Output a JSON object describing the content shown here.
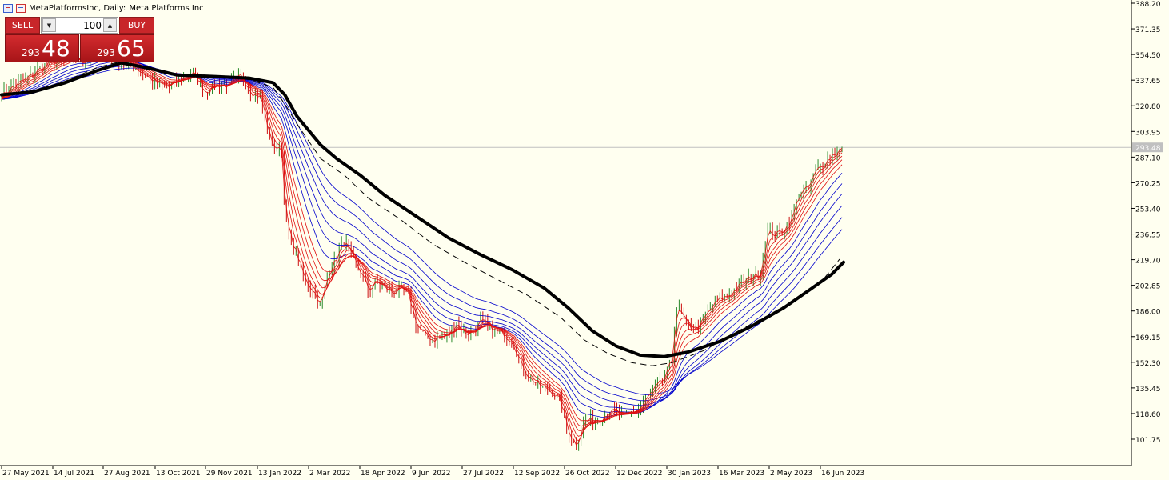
{
  "header": {
    "symbol_text": "MetaPlatformsInc, Daily:",
    "description": "Meta Platforms Inc"
  },
  "trade_panel": {
    "sell_label": "SELL",
    "buy_label": "BUY",
    "volume": "100",
    "sell_price_small": "293",
    "sell_price_large": "48",
    "buy_price_small": "293",
    "buy_price_large": "65"
  },
  "chart_data": {
    "type": "line",
    "title": "",
    "symbol": "MetaPlatformsInc",
    "timeframe": "Daily",
    "current_price": "293.48",
    "y_ticks": [
      "388.20",
      "371.35",
      "354.50",
      "337.65",
      "320.80",
      "303.95",
      "287.10",
      "270.25",
      "253.40",
      "236.55",
      "219.70",
      "202.85",
      "186.00",
      "169.15",
      "152.30",
      "135.45",
      "118.60",
      "101.75"
    ],
    "x_ticks": [
      "27 May 2021",
      "14 Jul 2021",
      "27 Aug 2021",
      "13 Oct 2021",
      "29 Nov 2021",
      "13 Jan 2022",
      "2 Mar 2022",
      "18 Apr 2022",
      "9 Jun 2022",
      "27 Jul 2022",
      "12 Sep 2022",
      "26 Oct 2022",
      "12 Dec 2022",
      "30 Jan 2023",
      "16 Mar 2023",
      "2 May 2023",
      "16 Jun 2023"
    ],
    "ylim": [
      92,
      390
    ],
    "colors": {
      "background": "#fffff0",
      "candles_up": "#2a8a2a",
      "candles_down": "#cc1111",
      "short_emas": "#e01010",
      "long_emas": "#0000cc",
      "ma_200": "#000000",
      "bid_line": "#c0c0c0"
    },
    "price_path": [
      [
        0,
        328
      ],
      [
        15,
        334
      ],
      [
        30,
        338
      ],
      [
        45,
        344
      ],
      [
        60,
        349
      ],
      [
        75,
        351
      ],
      [
        90,
        352
      ],
      [
        105,
        350
      ],
      [
        120,
        356
      ],
      [
        135,
        354
      ],
      [
        150,
        350
      ],
      [
        165,
        347
      ],
      [
        180,
        341
      ],
      [
        195,
        335
      ],
      [
        210,
        333
      ],
      [
        225,
        339
      ],
      [
        240,
        342
      ],
      [
        255,
        330
      ],
      [
        270,
        335
      ],
      [
        285,
        334
      ],
      [
        300,
        340
      ],
      [
        315,
        329
      ],
      [
        325,
        326
      ],
      [
        335,
        300
      ],
      [
        345,
        290
      ],
      [
        350,
        300
      ],
      [
        355,
        250
      ],
      [
        360,
        235
      ],
      [
        370,
        222
      ],
      [
        380,
        205
      ],
      [
        390,
        200
      ],
      [
        400,
        189
      ],
      [
        410,
        213
      ],
      [
        420,
        222
      ],
      [
        430,
        232
      ],
      [
        440,
        219
      ],
      [
        450,
        211
      ],
      [
        460,
        199
      ],
      [
        470,
        206
      ],
      [
        480,
        201
      ],
      [
        490,
        198
      ],
      [
        500,
        201
      ],
      [
        510,
        195
      ],
      [
        520,
        176
      ],
      [
        530,
        170
      ],
      [
        540,
        167
      ],
      [
        550,
        169
      ],
      [
        560,
        170
      ],
      [
        570,
        179
      ],
      [
        580,
        171
      ],
      [
        590,
        172
      ],
      [
        600,
        179
      ],
      [
        610,
        176
      ],
      [
        620,
        172
      ],
      [
        630,
        170
      ],
      [
        640,
        167
      ],
      [
        650,
        151
      ],
      [
        660,
        143
      ],
      [
        670,
        138
      ],
      [
        680,
        135
      ],
      [
        690,
        133
      ],
      [
        700,
        126
      ],
      [
        710,
        106
      ],
      [
        720,
        98
      ],
      [
        730,
        114
      ],
      [
        740,
        114
      ],
      [
        750,
        116
      ],
      [
        760,
        120
      ],
      [
        770,
        120
      ],
      [
        780,
        116
      ],
      [
        790,
        120
      ],
      [
        800,
        122
      ],
      [
        810,
        130
      ],
      [
        820,
        136
      ],
      [
        830,
        141
      ],
      [
        840,
        155
      ],
      [
        845,
        190
      ],
      [
        850,
        186
      ],
      [
        860,
        175
      ],
      [
        870,
        174
      ],
      [
        880,
        181
      ],
      [
        890,
        189
      ],
      [
        900,
        194
      ],
      [
        910,
        196
      ],
      [
        920,
        201
      ],
      [
        930,
        205
      ],
      [
        940,
        209
      ],
      [
        950,
        210
      ],
      [
        960,
        239
      ],
      [
        970,
        236
      ],
      [
        980,
        240
      ],
      [
        990,
        247
      ],
      [
        1000,
        265
      ],
      [
        1010,
        266
      ],
      [
        1020,
        278
      ],
      [
        1030,
        283
      ],
      [
        1040,
        289
      ],
      [
        1050,
        292
      ],
      [
        1055,
        293.48
      ]
    ],
    "ema_short_lags": [
      3,
      6,
      9,
      13,
      17,
      22
    ],
    "ema_long_lags": [
      30,
      40,
      50,
      62,
      75,
      90
    ],
    "ma_200_path": [
      [
        0,
        328
      ],
      [
        40,
        330
      ],
      [
        80,
        336
      ],
      [
        120,
        344
      ],
      [
        150,
        349
      ],
      [
        180,
        346
      ],
      [
        220,
        341
      ],
      [
        270,
        340
      ],
      [
        310,
        339
      ],
      [
        340,
        336
      ],
      [
        355,
        328
      ],
      [
        370,
        314
      ],
      [
        400,
        295
      ],
      [
        420,
        286
      ],
      [
        450,
        275
      ],
      [
        480,
        262
      ],
      [
        520,
        248
      ],
      [
        560,
        234
      ],
      [
        600,
        223
      ],
      [
        640,
        213
      ],
      [
        680,
        201
      ],
      [
        710,
        188
      ],
      [
        740,
        173
      ],
      [
        770,
        163
      ],
      [
        800,
        157
      ],
      [
        830,
        156
      ],
      [
        860,
        159
      ],
      [
        900,
        166
      ],
      [
        940,
        176
      ],
      [
        980,
        188
      ],
      [
        1010,
        199
      ],
      [
        1040,
        210
      ],
      [
        1055,
        218
      ]
    ],
    "ma_200_dashed_path": [
      [
        0,
        328
      ],
      [
        40,
        330
      ],
      [
        80,
        337
      ],
      [
        120,
        346
      ],
      [
        150,
        350
      ],
      [
        180,
        345
      ],
      [
        220,
        341
      ],
      [
        270,
        340
      ],
      [
        310,
        338
      ],
      [
        340,
        333
      ],
      [
        355,
        322
      ],
      [
        370,
        309
      ],
      [
        400,
        286
      ],
      [
        430,
        275
      ],
      [
        460,
        260
      ],
      [
        500,
        246
      ],
      [
        540,
        230
      ],
      [
        580,
        218
      ],
      [
        620,
        207
      ],
      [
        660,
        196
      ],
      [
        700,
        182
      ],
      [
        730,
        167
      ],
      [
        760,
        158
      ],
      [
        790,
        152
      ],
      [
        815,
        150
      ],
      [
        840,
        152
      ],
      [
        880,
        160
      ],
      [
        920,
        172
      ],
      [
        960,
        183
      ],
      [
        1000,
        195
      ],
      [
        1030,
        207
      ],
      [
        1050,
        220
      ]
    ]
  }
}
